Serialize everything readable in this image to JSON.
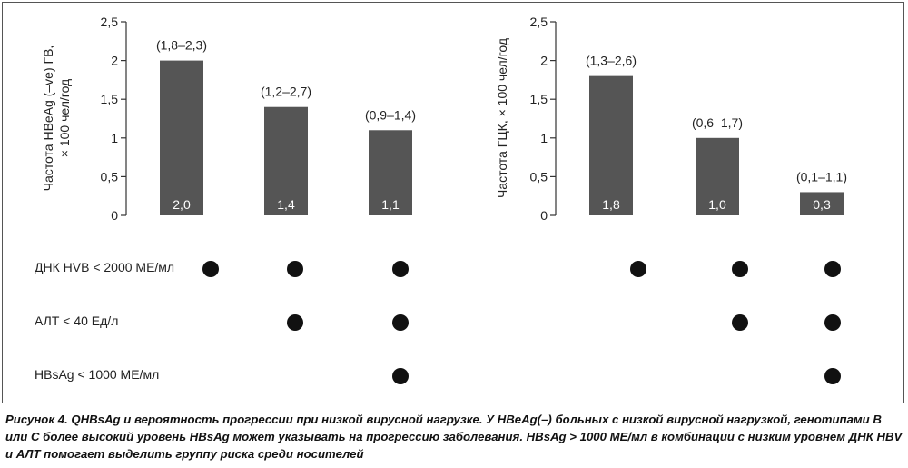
{
  "chart_data": [
    {
      "type": "bar",
      "ylabel": "Частота HBeAg (–ve) ГВ,\n× 100 чел/год",
      "ylim": [
        0,
        2.5
      ],
      "yticks": [
        "0",
        "0,5",
        "1",
        "1,5",
        "2",
        "2,5"
      ],
      "values": [
        2.0,
        1.4,
        1.1
      ],
      "value_labels": [
        "2,0",
        "1,4",
        "1,1"
      ],
      "ci_labels": [
        "(1,8–2,3)",
        "(1,2–2,7)",
        "(0,9–1,4)"
      ],
      "bar_color": "#555555"
    },
    {
      "type": "bar",
      "ylabel": "Частота ГЦК, × 100 чел/год",
      "ylim": [
        0,
        2.5
      ],
      "yticks": [
        "0",
        "0,5",
        "1",
        "1,5",
        "2",
        "2,5"
      ],
      "values": [
        1.8,
        1.0,
        0.3
      ],
      "value_labels": [
        "1,8",
        "1,0",
        "0,3"
      ],
      "ci_labels": [
        "(1,3–2,6)",
        "(0,6–1,7)",
        "(0,1–1,1)"
      ],
      "bar_color": "#555555"
    }
  ],
  "criteria": [
    {
      "label": "ДНК HVB < 2000 МЕ/мл",
      "chart1": [
        true,
        true,
        true
      ],
      "chart2": [
        true,
        true,
        true
      ]
    },
    {
      "label": "АЛТ < 40 Ед/л",
      "chart1": [
        false,
        true,
        true
      ],
      "chart2": [
        false,
        true,
        true
      ]
    },
    {
      "label": "HBsAg < 1000 МЕ/мл",
      "chart1": [
        false,
        false,
        true
      ],
      "chart2": [
        false,
        false,
        true
      ]
    }
  ],
  "caption": "Рисунок 4. QHBsAg и вероятность прогрессии при низкой вирусной нагрузке. У HBeAg(–) больных с низкой вирусной нагрузкой, генотипами B или C более высокий уровень HBsAg может указывать на прогрессию заболевания. HBsAg > 1000 МЕ/мл в комбинации с низким уровнем ДНК HBV и АЛТ помогает выделить группу риска среди носителей"
}
